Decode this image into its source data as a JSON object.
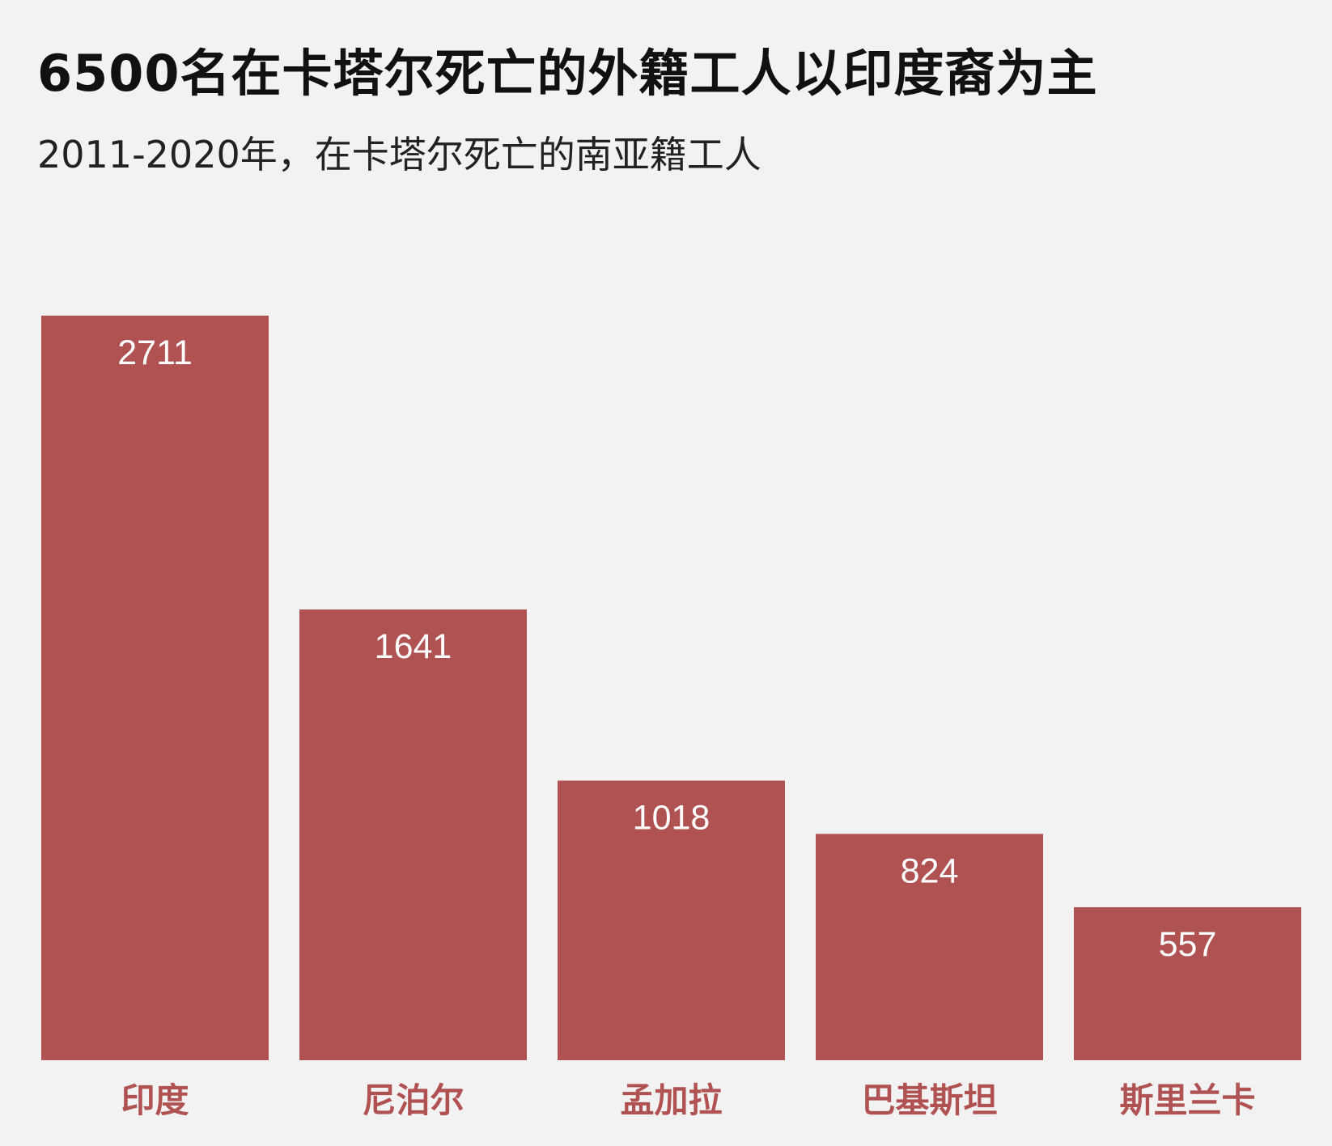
{
  "chart_data": {
    "type": "bar",
    "title": "6500名在卡塔尔死亡的外籍工人以印度裔为主",
    "subtitle": "2011-2020年，在卡塔尔死亡的南亚籍工人",
    "categories": [
      "印度",
      "尼泊尔",
      "孟加拉",
      "巴基斯坦",
      "斯里兰卡"
    ],
    "values": [
      2711,
      1641,
      1018,
      824,
      557
    ],
    "xlabel": "",
    "ylabel": "",
    "ylim": [
      0,
      2711
    ],
    "grid": false,
    "bar_color": "#b05252",
    "label_color": "#b05252",
    "value_label_color": "#ffffff",
    "background": "#f2f2f2"
  }
}
